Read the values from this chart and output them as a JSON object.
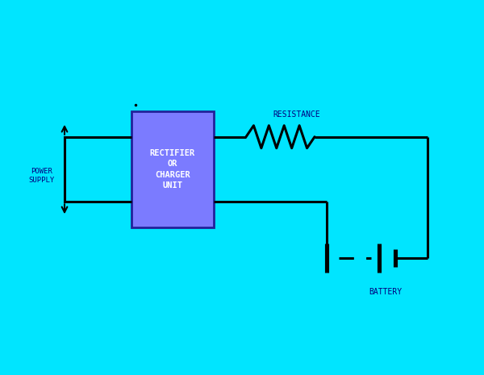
{
  "bg_color": "#00E5FF",
  "line_color": "#000000",
  "box_color": "#7B7BFF",
  "box_edge_color": "#22229A",
  "box_label": "RECTIFIER\nOR\nCHARGER\nUNIT",
  "box_label_color": "#FFFFFF",
  "resistance_label": "RESISTANCE",
  "battery_label": "BATTERY",
  "power_supply_label": "POWER\nSUPPLY",
  "label_color": "#000080",
  "lw": 2.2,
  "fig_w": 6.0,
  "fig_h": 4.65,
  "dpi": 100
}
